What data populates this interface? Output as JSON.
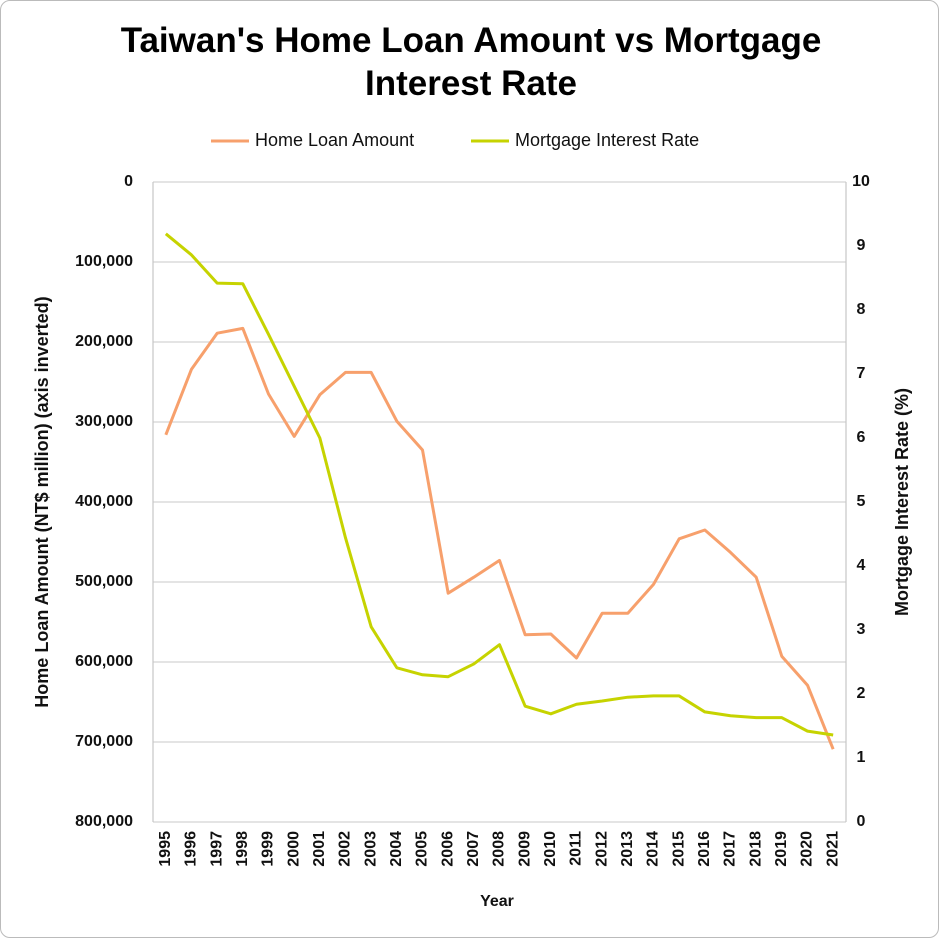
{
  "chart_data": {
    "type": "line",
    "title": "Taiwan's Home Loan Amount vs Mortgage Interest Rate",
    "x_label": "Year",
    "y_label": "Home Loan Amount (NT$ million) (axis inverted)",
    "y2_label": "Mortgage Interest Rate (%)",
    "categories": [
      "1995",
      "1996",
      "1997",
      "1998",
      "1999",
      "2000",
      "2001",
      "2002",
      "2003",
      "2004",
      "2005",
      "2006",
      "2007",
      "2008",
      "2009",
      "2010",
      "2011",
      "2012",
      "2013",
      "2014",
      "2015",
      "2016",
      "2017",
      "2018",
      "2019",
      "2020",
      "2021"
    ],
    "series": [
      {
        "name": "Home Loan Amount",
        "color": "#f7a06c",
        "axis": "y",
        "values": [
          316000,
          234000,
          189000,
          183000,
          265000,
          318000,
          266000,
          238000,
          238000,
          299000,
          335000,
          514000,
          494000,
          473000,
          566000,
          565000,
          595000,
          539000,
          539000,
          503000,
          446000,
          435000,
          463000,
          494000,
          593000,
          629000,
          709000
        ]
      },
      {
        "name": "Mortgage Interest Rate",
        "color": "#c6d300",
        "axis": "y2",
        "values": [
          9.19,
          8.86,
          8.42,
          8.41,
          7.62,
          6.81,
          6.0,
          4.44,
          3.05,
          2.41,
          2.3,
          2.27,
          2.47,
          2.77,
          1.81,
          1.69,
          1.84,
          1.89,
          1.95,
          1.97,
          1.97,
          1.72,
          1.66,
          1.63,
          1.63,
          1.42,
          1.36
        ]
      }
    ],
    "ylim": [
      0,
      800000
    ],
    "y_inverted": true,
    "yticks": [
      0,
      {
        "value": 100000,
        "label": "100,000"
      },
      {
        "value": 200000,
        "label": "200,000"
      },
      {
        "value": 300000,
        "label": "300,000"
      },
      {
        "value": 400000,
        "label": "400,000"
      },
      {
        "value": 500000,
        "label": "500,000"
      },
      {
        "value": 600000,
        "label": "600,000"
      },
      {
        "value": 700000,
        "label": "700,000"
      },
      {
        "value": 800000,
        "label": "800,000"
      }
    ],
    "y2lim": [
      0,
      10
    ],
    "y2ticks": [
      0,
      1,
      2,
      3,
      4,
      5,
      6,
      7,
      8,
      9,
      10
    ],
    "grid": true,
    "legend": "top"
  }
}
